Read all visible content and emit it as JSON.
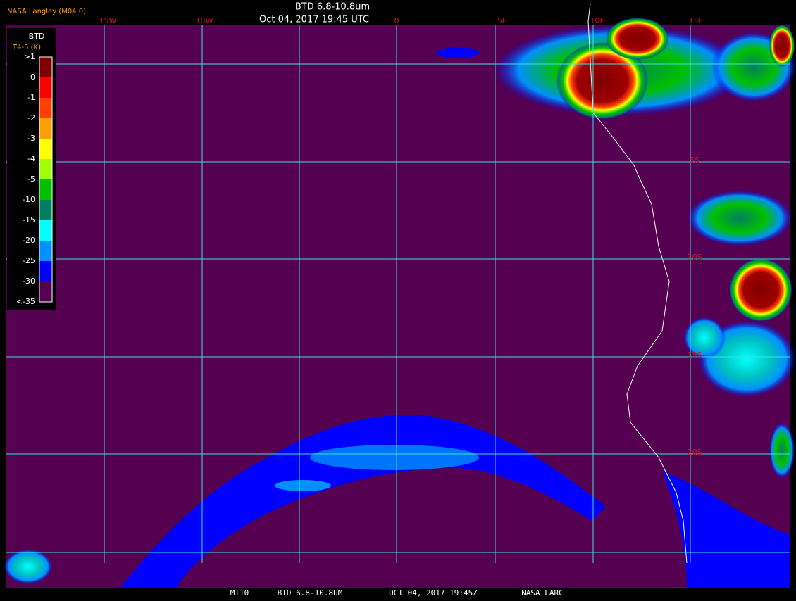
{
  "header": {
    "agency": "NASA Langley (M04.0)",
    "title": "BTD 6.8-10.8um",
    "time": "Oct 04, 2017 19:45 UTC"
  },
  "map": {
    "lon_labels": [
      "15W",
      "10W",
      "0",
      "5E",
      "10E",
      "15E"
    ],
    "lat_labels": [
      "5S",
      "10S",
      "15S",
      "20S"
    ]
  },
  "legend": {
    "title": "BTD",
    "units": "T4-5 (K)",
    "labels": [
      ">1",
      "0",
      "-1",
      "-2",
      "-3",
      "-4",
      "-5",
      "-10",
      "-15",
      "-20",
      "-25",
      "-30",
      "<-35"
    ],
    "colors": [
      "#800000",
      "#ff0000",
      "#ff4000",
      "#ffa000",
      "#ffff00",
      "#a0ff00",
      "#00c000",
      "#008060",
      "#00ffff",
      "#0090ff",
      "#0000ff",
      "#560051"
    ]
  },
  "footer": {
    "items": [
      "MT10",
      "BTD 6.8-10.8UM",
      "OCT 04, 2017 19:45Z",
      "NASA LARC"
    ]
  }
}
